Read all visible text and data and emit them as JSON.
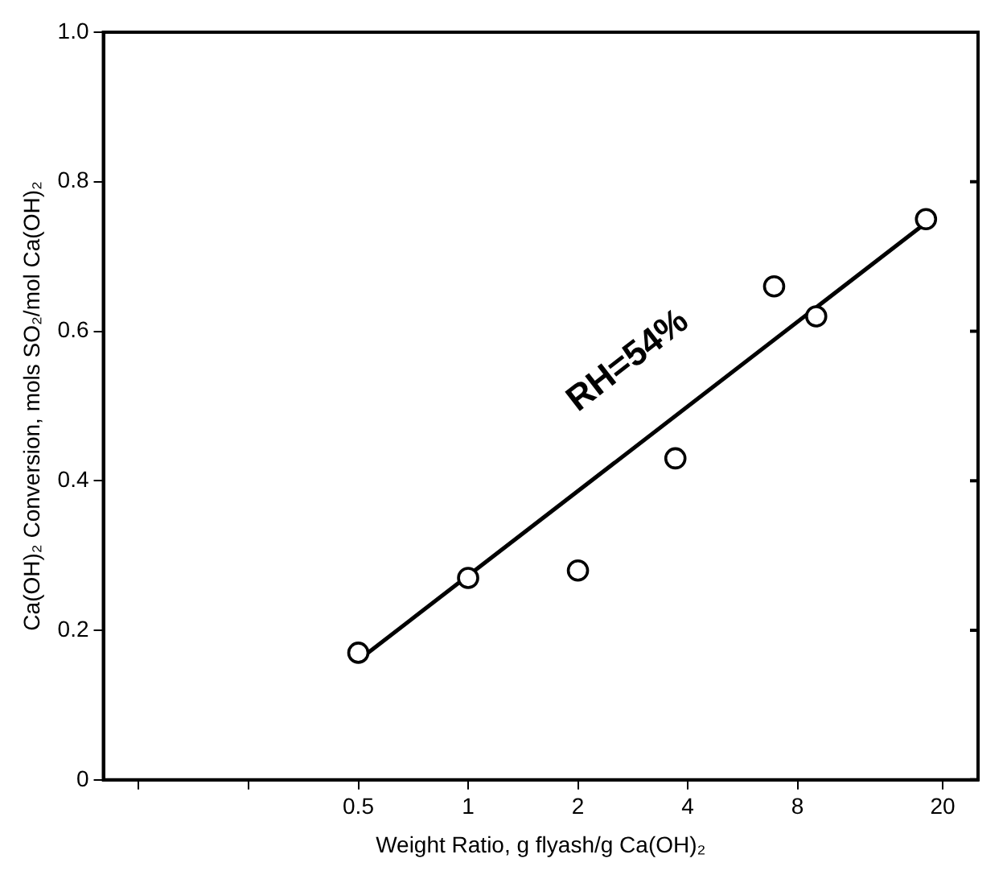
{
  "chart_data": {
    "type": "scatter",
    "xlabel": "Weight Ratio, g flyash/g Ca(OH)₂",
    "ylabel": "Ca(OH)₂ Conversion, mols SO₂/mol Ca(OH)₂",
    "log": "x",
    "grid": false,
    "marker": "circle",
    "xlim": [
      0.1,
      25
    ],
    "xticks": [
      {
        "value": 0.125,
        "label": null
      },
      {
        "value": 0.25,
        "label": null
      },
      0.5,
      1,
      2,
      4,
      8,
      20
    ],
    "ylim": [
      0,
      1
    ],
    "yticks": [
      0,
      0.2,
      0.4,
      0.6,
      0.8,
      {
        "value": 1,
        "label": "1.0"
      }
    ],
    "series": [
      {
        "color": "#000000",
        "x": [
          0.5,
          1,
          2,
          3.7,
          6.9,
          9,
          18
        ],
        "values": [
          0.17,
          0.27,
          0.28,
          0.43,
          0.66,
          0.62,
          0.75
        ]
      },
      {
        "type": "line",
        "color": "#000000",
        "marker": "none",
        "x": [
          0.5,
          18
        ],
        "values": [
          0.16,
          0.745
        ]
      }
    ],
    "annotations": [
      "RH=54%"
    ]
  }
}
